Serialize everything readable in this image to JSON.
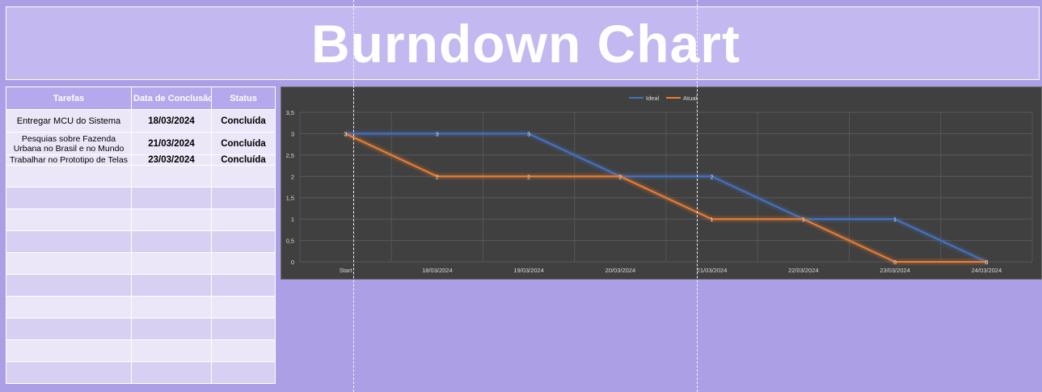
{
  "title": "Burndown Chart",
  "table": {
    "headers": [
      "Tarefas",
      "Data de Conclusão",
      "Status"
    ],
    "rows": [
      {
        "task": "Entregar MCU do Sistema",
        "date": "18/03/2024",
        "status": "Concluída"
      },
      {
        "task": "Pesquias sobre Fazenda Urbana no Brasil e no Mundo",
        "date": "21/03/2024",
        "status": "Concluída"
      },
      {
        "task": "Trabalhar no Prototipo de Telas",
        "date": "23/03/2024",
        "status": "Concluída"
      }
    ]
  },
  "colors": {
    "background": "#ad9fe5",
    "title_band": "#c3b8ef",
    "chart_bg": "#404040",
    "ideal": "#4472c4",
    "atual": "#ed7d31"
  },
  "chart_data": {
    "type": "line",
    "title": "",
    "xlabel": "",
    "ylabel": "",
    "categories": [
      "Start",
      "18/03/2024",
      "19/03/2024",
      "20/03/2024",
      "21/03/2024",
      "22/03/2024",
      "23/03/2024",
      "24/03/2024"
    ],
    "series": [
      {
        "name": "Ideal",
        "values": [
          3,
          3,
          3,
          2,
          2,
          1,
          1,
          0
        ]
      },
      {
        "name": "Atual",
        "values": [
          3,
          2,
          2,
          2,
          1,
          1,
          0,
          0
        ]
      }
    ],
    "ylim": [
      0,
      3.5
    ],
    "yticks": [
      "0",
      "0,5",
      "1",
      "1,5",
      "2",
      "2,5",
      "3",
      "3,5"
    ],
    "grid": true,
    "legend": "top-center",
    "data_labels": true
  }
}
